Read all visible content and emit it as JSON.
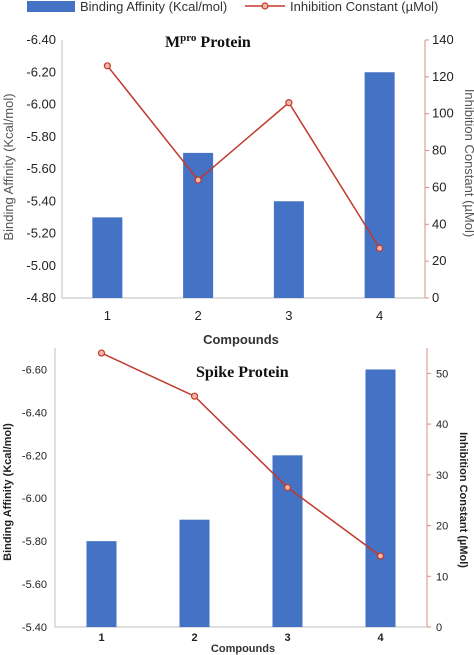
{
  "legend": {
    "bar_label": "Binding Affinity (Kcal/mol)",
    "line_label": "Inhibition Constant (µMol)"
  },
  "colors": {
    "bar": "#4472c4",
    "line": "#c0392b",
    "marker_fill": "#f4b6a6"
  },
  "chart_data": [
    {
      "type": "bar",
      "title_main": "M",
      "title_sup": "pro",
      "title_rest": " Protein",
      "categories": [
        "1",
        "2",
        "3",
        "4"
      ],
      "xlabel": "Compounds",
      "ylabel": "Binding Affinity (Kcal/mol)",
      "y2label": "Inhibition Constant (µMol)",
      "y_ticks": [
        "-6.40",
        "-6.20",
        "-6.00",
        "-5.80",
        "-5.60",
        "-5.40",
        "-5.20",
        "-5.00",
        "-4.80"
      ],
      "y2_ticks": [
        "140",
        "120",
        "100",
        "80",
        "60",
        "40",
        "20",
        "0"
      ],
      "y_axis_reversed": true,
      "ylim": [
        -4.8,
        -6.4
      ],
      "y2lim": [
        0,
        140
      ],
      "series": [
        {
          "name": "Binding Affinity (Kcal/mol)",
          "kind": "bar",
          "axis": "left",
          "values": [
            -5.3,
            -5.7,
            -5.4,
            -6.2
          ]
        },
        {
          "name": "Inhibition Constant (µMol)",
          "kind": "line",
          "axis": "right",
          "values": [
            126,
            64,
            106,
            27
          ]
        }
      ]
    },
    {
      "type": "bar",
      "title_main": "Spike Protein",
      "title_sup": "",
      "title_rest": "",
      "categories": [
        "1",
        "2",
        "3",
        "4"
      ],
      "xlabel": "Compounds",
      "ylabel": "Binding Affinity (Kcal/mol)",
      "y2label": "Inhibition Constant (µMol)",
      "y_ticks": [
        "-6.60",
        "-6.40",
        "-6.20",
        "-6.00",
        "-5.80",
        "-5.60",
        "-5.40"
      ],
      "y2_ticks": [
        "50",
        "40",
        "30",
        "20",
        "10",
        "0"
      ],
      "y_axis_reversed": true,
      "ylim": [
        -5.4,
        -6.7
      ],
      "y2lim": [
        0,
        55
      ],
      "series": [
        {
          "name": "Binding Affinity (Kcal/mol)",
          "kind": "bar",
          "axis": "left",
          "values": [
            -5.8,
            -5.9,
            -6.2,
            -6.6
          ]
        },
        {
          "name": "Inhibition Constant (µMol)",
          "kind": "line",
          "axis": "right",
          "values": [
            54,
            45.5,
            27.5,
            14
          ]
        }
      ]
    }
  ]
}
